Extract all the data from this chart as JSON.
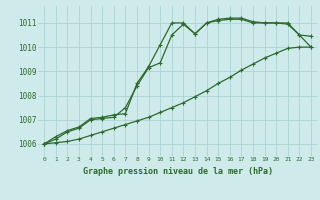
{
  "title": "Graphe pression niveau de la mer (hPa)",
  "bg_color": "#ceeaea",
  "grid_color": "#aad4d4",
  "line_color": "#2d6b2d",
  "x_values": [
    0,
    1,
    2,
    3,
    4,
    5,
    6,
    7,
    8,
    9,
    10,
    11,
    12,
    13,
    14,
    15,
    16,
    17,
    18,
    19,
    20,
    21,
    22,
    23
  ],
  "series1": [
    1006.0,
    1006.3,
    1006.55,
    1006.7,
    1007.05,
    1007.1,
    1007.2,
    1007.25,
    1008.5,
    1009.2,
    1010.1,
    1011.0,
    1011.0,
    1010.55,
    1011.0,
    1011.15,
    1011.2,
    1011.2,
    1011.05,
    1011.0,
    1011.0,
    1011.0,
    1010.5,
    1010.0
  ],
  "series2": [
    1006.0,
    1006.2,
    1006.5,
    1006.65,
    1007.0,
    1007.05,
    1007.1,
    1007.5,
    1008.4,
    1009.15,
    1009.35,
    1010.5,
    1010.95,
    1010.55,
    1011.0,
    1011.1,
    1011.15,
    1011.15,
    1011.0,
    1011.0,
    1011.0,
    1010.95,
    1010.5,
    1010.45
  ],
  "series3": [
    1006.0,
    1006.05,
    1006.1,
    1006.2,
    1006.35,
    1006.5,
    1006.65,
    1006.8,
    1006.95,
    1007.1,
    1007.3,
    1007.5,
    1007.7,
    1007.95,
    1008.2,
    1008.5,
    1008.75,
    1009.05,
    1009.3,
    1009.55,
    1009.75,
    1009.95,
    1010.0,
    1010.0
  ],
  "ylim": [
    1005.5,
    1011.7
  ],
  "yticks": [
    1006,
    1007,
    1008,
    1009,
    1010,
    1011
  ],
  "xlim": [
    -0.5,
    23.5
  ],
  "xticks": [
    0,
    1,
    2,
    3,
    4,
    5,
    6,
    7,
    8,
    9,
    10,
    11,
    12,
    13,
    14,
    15,
    16,
    17,
    18,
    19,
    20,
    21,
    22,
    23
  ]
}
